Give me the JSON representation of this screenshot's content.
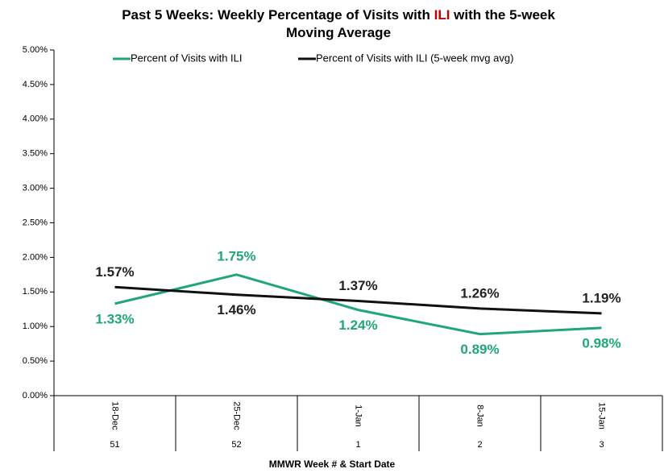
{
  "chart_data": {
    "type": "line",
    "title_parts": [
      "Past 5 Weeks: Weekly Percentage of Visits with",
      "ILI",
      "with the 5-week",
      "Moving Average"
    ],
    "title_highlight_color": "#c00000",
    "categories": [
      "18-Dec",
      "25-Dec",
      "1-Jan",
      "8-Jan",
      "15-Jan"
    ],
    "weeks": [
      "51",
      "52",
      "1",
      "2",
      "3"
    ],
    "x_label": "MMWR Week # & Start Date",
    "ylim": [
      0,
      5
    ],
    "yticks": [
      {
        "value": 0,
        "label": "0.00%"
      },
      {
        "value": 0.5,
        "label": "0.50%"
      },
      {
        "value": 1,
        "label": "1.00%"
      },
      {
        "value": 1.5,
        "label": "1.50%"
      },
      {
        "value": 2,
        "label": "2.00%"
      },
      {
        "value": 2.5,
        "label": "2.50%"
      },
      {
        "value": 3,
        "label": "3.00%"
      },
      {
        "value": 3.5,
        "label": "3.50%"
      },
      {
        "value": 4,
        "label": "4.00%"
      },
      {
        "value": 4.5,
        "label": "4.50%"
      },
      {
        "value": 5,
        "label": "5.00%"
      }
    ],
    "series": [
      {
        "name": "Percent of Visits with ILI",
        "color": "#1fa774",
        "values": [
          1.33,
          1.75,
          1.24,
          0.89,
          0.98
        ],
        "value_labels": [
          "1.33%",
          "1.75%",
          "1.24%",
          "0.89%",
          "0.98%"
        ]
      },
      {
        "name": "Percent of Visits with ILI (5-week mvg avg)",
        "color": "#111111",
        "values": [
          1.57,
          1.46,
          1.37,
          1.26,
          1.19
        ],
        "value_labels": [
          "1.57%",
          "1.46%",
          "1.37%",
          "1.26%",
          "1.19%"
        ]
      }
    ]
  }
}
